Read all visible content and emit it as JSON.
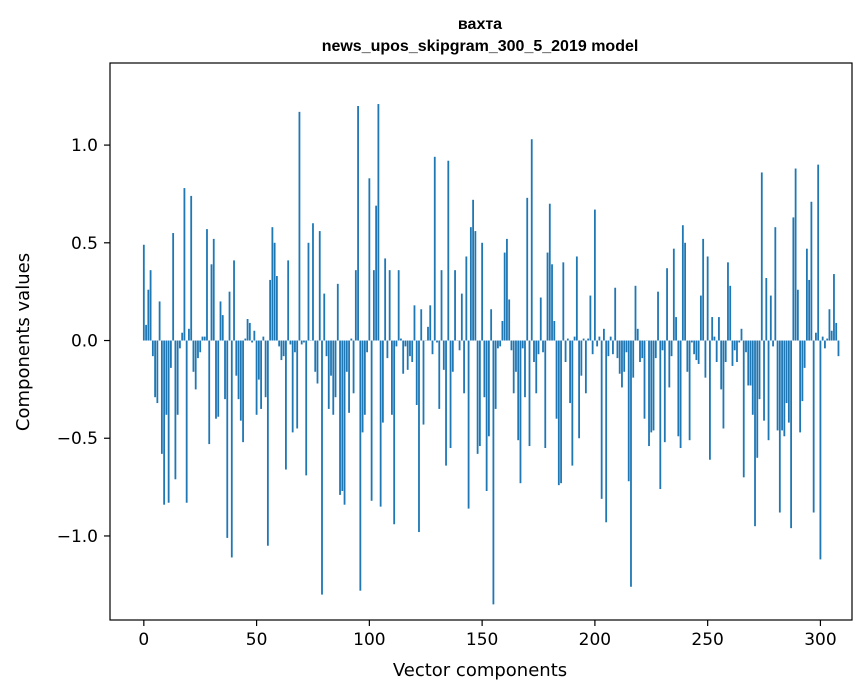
{
  "chart_data": {
    "type": "bar",
    "title_line1": "вахта",
    "title_line2": "news_upos_skipgram_300_5_2019 model",
    "xlabel": "Vector components",
    "ylabel": "Components values",
    "xlim": [
      -15,
      314
    ],
    "ylim": [
      -1.43,
      1.42
    ],
    "xticks": [
      0,
      50,
      100,
      150,
      200,
      250,
      300
    ],
    "xtick_labels": [
      "0",
      "50",
      "100",
      "150",
      "200",
      "250",
      "300"
    ],
    "yticks": [
      -1.0,
      -0.5,
      0.0,
      0.5,
      1.0
    ],
    "ytick_labels": [
      "−1.0",
      "−0.5",
      "0.0",
      "0.5",
      "1.0"
    ],
    "values": [
      0.49,
      0.08,
      0.26,
      0.36,
      -0.08,
      -0.29,
      -0.32,
      0.2,
      -0.58,
      -0.84,
      -0.38,
      -0.83,
      -0.14,
      0.55,
      -0.71,
      -0.38,
      -0.04,
      0.04,
      0.78,
      -0.83,
      0.06,
      0.74,
      -0.16,
      -0.25,
      -0.09,
      -0.06,
      0.02,
      0.02,
      0.57,
      -0.53,
      0.39,
      0.52,
      -0.4,
      -0.39,
      0.2,
      0.13,
      -0.3,
      -1.01,
      0.25,
      -1.11,
      0.41,
      -0.18,
      -0.3,
      -0.41,
      -0.52,
      0.01,
      0.11,
      0.09,
      -0.01,
      0.05,
      -0.38,
      -0.2,
      -0.35,
      0.02,
      -0.29,
      -1.05,
      0.31,
      0.58,
      0.5,
      0.33,
      -0.03,
      -0.1,
      -0.08,
      -0.66,
      0.41,
      -0.02,
      -0.47,
      -0.06,
      -0.45,
      1.17,
      -0.02,
      -0.01,
      -0.69,
      0.5,
      0.0,
      0.6,
      -0.16,
      -0.22,
      0.56,
      -1.3,
      0.24,
      -0.08,
      -0.35,
      -0.18,
      -0.38,
      -0.29,
      0.29,
      -0.79,
      -0.77,
      -0.84,
      -0.16,
      -0.37,
      0.01,
      -0.27,
      0.36,
      1.2,
      -1.28,
      -0.47,
      -0.38,
      -0.06,
      0.83,
      -0.82,
      0.36,
      0.69,
      1.21,
      -0.85,
      -0.42,
      0.42,
      -0.09,
      0.36,
      -0.38,
      -0.94,
      -0.03,
      0.36,
      0.01,
      -0.17,
      -0.03,
      -0.15,
      -0.08,
      -0.11,
      0.18,
      -0.33,
      -0.98,
      0.16,
      -0.43,
      0.0,
      0.07,
      0.18,
      -0.07,
      0.94,
      -0.01,
      -0.35,
      0.36,
      -0.15,
      -0.64,
      0.92,
      -0.55,
      -0.16,
      0.36,
      0.0,
      -0.05,
      0.24,
      -0.27,
      0.43,
      -0.86,
      0.58,
      0.72,
      0.56,
      -0.58,
      -0.54,
      0.5,
      -0.29,
      -0.77,
      -0.49,
      0.16,
      -1.35,
      -0.35,
      -0.04,
      -0.03,
      0.1,
      0.45,
      0.52,
      0.21,
      -0.05,
      -0.27,
      -0.16,
      -0.51,
      -0.73,
      -0.04,
      -0.29,
      0.73,
      -0.54,
      1.03,
      -0.11,
      -0.27,
      -0.07,
      0.22,
      -0.06,
      -0.55,
      0.45,
      0.7,
      0.39,
      0.1,
      -0.4,
      -0.74,
      -0.73,
      0.4,
      -0.11,
      0.01,
      -0.32,
      -0.64,
      0.02,
      0.43,
      -0.5,
      -0.18,
      0.01,
      -0.27,
      0.01,
      0.23,
      -0.07,
      0.67,
      -0.03,
      0.02,
      -0.81,
      0.06,
      -0.93,
      -0.08,
      0.02,
      -0.07,
      0.27,
      -0.09,
      -0.17,
      -0.24,
      -0.16,
      -0.06,
      -0.72,
      -1.26,
      -0.19,
      0.28,
      0.06,
      -0.11,
      -0.09,
      -0.4,
      0.0,
      -0.54,
      -0.47,
      -0.46,
      -0.09,
      0.25,
      -0.76,
      -0.05,
      -0.52,
      0.37,
      -0.24,
      -0.08,
      0.47,
      0.12,
      -0.49,
      -0.55,
      0.59,
      0.5,
      -0.16,
      -0.51,
      -0.01,
      -0.07,
      -0.1,
      -0.12,
      0.23,
      0.52,
      -0.19,
      0.43,
      -0.61,
      0.12,
      0.02,
      -0.11,
      0.12,
      -0.25,
      -0.45,
      -0.11,
      0.4,
      0.28,
      -0.13,
      -0.05,
      -0.11,
      -0.01,
      0.06,
      -0.7,
      -0.06,
      -0.23,
      -0.23,
      -0.38,
      -0.95,
      -0.6,
      -0.3,
      0.86,
      -0.41,
      0.32,
      -0.51,
      0.23,
      -0.03,
      0.58,
      -0.46,
      -0.88,
      -0.46,
      -0.49,
      -0.32,
      -0.42,
      -0.96,
      0.63,
      0.88,
      0.26,
      -0.47,
      -0.31,
      -0.14,
      0.47,
      0.31,
      0.71,
      -0.88,
      0.04,
      0.9,
      -1.12,
      0.02,
      -0.04,
      0.01,
      0.16,
      0.05,
      0.34,
      0.09,
      -0.08
    ]
  }
}
